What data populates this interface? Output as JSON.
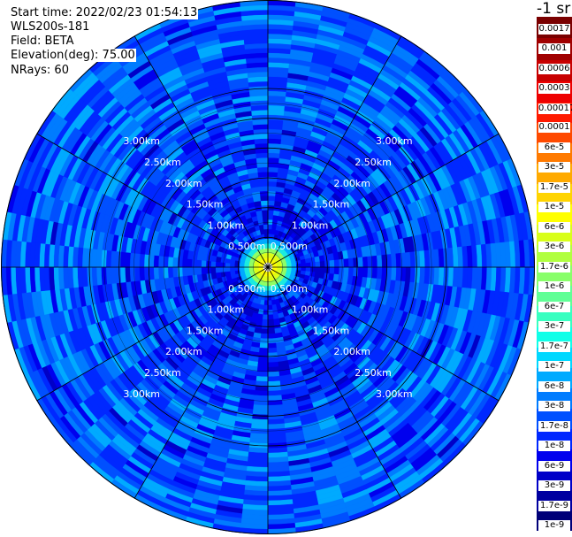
{
  "header": {
    "start_time": "Start time: 2022/02/23 01:54:13",
    "instrument": "WLS200s-181",
    "field": "Field: BETA",
    "elevation": "Elevation(deg): 75.00",
    "nrays": "NRays: 60"
  },
  "chart_data": {
    "type": "heatmap",
    "projection": "polar (PPI scan)",
    "field": "BETA",
    "units_label": "-1 sr",
    "range_ring_labels": [
      "0.500m",
      "1.00km",
      "1.50km",
      "2.00km",
      "2.50km",
      "3.00km"
    ],
    "range_rings_km": [
      0.5,
      1.0,
      1.5,
      2.0,
      2.5,
      3.0
    ],
    "n_rays": 60,
    "radial_profile": [
      {
        "range_km": 0.0,
        "beta": "1e-5"
      },
      {
        "range_km": 0.2,
        "beta": "6e-6"
      },
      {
        "range_km": 0.35,
        "beta": "3e-7"
      },
      {
        "range_km": 0.5,
        "beta": "3e-8"
      },
      {
        "range_km": 1.0,
        "beta": "3e-9"
      },
      {
        "range_km": 2.0,
        "beta": "3e-9"
      },
      {
        "range_km": 3.0,
        "beta": "6e-9"
      }
    ],
    "colorbar": {
      "labels": [
        "0.0017",
        "0.001",
        "0.0006",
        "0.0003",
        "0.00017",
        "0.0001",
        "6e-5",
        "3e-5",
        "1.7e-5",
        "1e-5",
        "6e-6",
        "3e-6",
        "1.7e-6",
        "1e-6",
        "6e-7",
        "3e-7",
        "1.7e-7",
        "1e-7",
        "6e-8",
        "3e-8",
        "1.7e-8",
        "1e-8",
        "6e-9",
        "3e-9",
        "1.7e-9",
        "1e-9"
      ],
      "colors_top": [
        "#7a0000",
        "#a00000",
        "#c80000",
        "#ee0000"
      ],
      "colors_main": [
        "#ff1a00",
        "#ff4a00",
        "#ff7a00",
        "#ffaa00",
        "#ffd400",
        "#ffff00",
        "#d8ff1a",
        "#b0ff40",
        "#88ff6a",
        "#60ff96",
        "#38ffc0",
        "#10ffe8",
        "#00d8ff",
        "#00aaff",
        "#007cff",
        "#0050ff",
        "#0028ff",
        "#0000ee",
        "#0000c8",
        "#0000a0",
        "#000078"
      ]
    }
  }
}
